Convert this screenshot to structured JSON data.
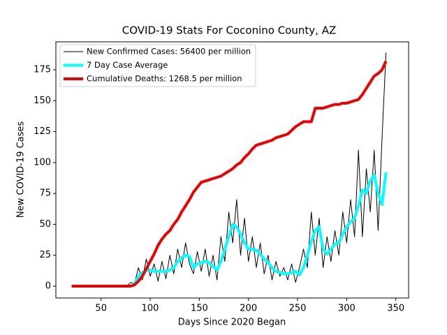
{
  "chart_data": {
    "type": "line",
    "title": "COVID-19 Stats For Coconino County, AZ",
    "x_label": "Days Since 2020 Began",
    "y_label": "New COVID-19 Cases",
    "x": [
      20,
      24,
      28,
      32,
      36,
      40,
      44,
      48,
      52,
      56,
      60,
      64,
      68,
      72,
      76,
      80,
      84,
      88,
      92,
      96,
      100,
      104,
      108,
      112,
      116,
      120,
      124,
      128,
      132,
      136,
      140,
      144,
      148,
      152,
      156,
      160,
      164,
      168,
      172,
      176,
      180,
      184,
      188,
      192,
      196,
      200,
      204,
      208,
      212,
      216,
      220,
      224,
      228,
      232,
      236,
      240,
      244,
      248,
      252,
      256,
      260,
      264,
      268,
      272,
      276,
      280,
      284,
      288,
      292,
      296,
      300,
      304,
      308,
      312,
      316,
      320,
      324,
      328,
      332,
      336,
      340
    ],
    "series": [
      {
        "name": "New Confirmed Cases: 56400 per million",
        "color": "#000000",
        "width": 1,
        "values": [
          0,
          0,
          0,
          0,
          0,
          0,
          0,
          0,
          0,
          0,
          0,
          0,
          0,
          0,
          0,
          3,
          2,
          15,
          5,
          22,
          8,
          18,
          4,
          20,
          6,
          25,
          10,
          30,
          15,
          35,
          18,
          10,
          28,
          12,
          30,
          8,
          25,
          5,
          40,
          20,
          60,
          35,
          70,
          25,
          55,
          20,
          40,
          15,
          35,
          10,
          25,
          5,
          20,
          8,
          15,
          5,
          18,
          3,
          15,
          30,
          15,
          60,
          25,
          55,
          15,
          40,
          20,
          45,
          25,
          60,
          35,
          70,
          40,
          110,
          40,
          95,
          60,
          110,
          45,
          120,
          189
        ]
      },
      {
        "name": "7 Day Case Average",
        "color": "#00ffff",
        "width": 4,
        "values": [
          0,
          0,
          0,
          0,
          0,
          0,
          0,
          0,
          0,
          0,
          0,
          0,
          0,
          0,
          0,
          0,
          2,
          8,
          11,
          13,
          13,
          12,
          12,
          12,
          12,
          13,
          15,
          20,
          23,
          25,
          24,
          15,
          18,
          19,
          20,
          19,
          16,
          13,
          20,
          30,
          40,
          50,
          48,
          42,
          35,
          30,
          30,
          29,
          26,
          22,
          19,
          15,
          12,
          11,
          10,
          10,
          11,
          12,
          9,
          15,
          25,
          36,
          45,
          48,
          30,
          26,
          30,
          34,
          35,
          42,
          48,
          52,
          55,
          65,
          78,
          75,
          85,
          90,
          75,
          66,
          92
        ]
      },
      {
        "name": "Cumulative Deaths: 1268.5 per million",
        "color": "#ee0000",
        "width": 4,
        "values": [
          0,
          0,
          0,
          0,
          0,
          0,
          0,
          0,
          0,
          0,
          0,
          0,
          0,
          0,
          0,
          0,
          1,
          4,
          8,
          14,
          20,
          26,
          33,
          38,
          42,
          45,
          50,
          54,
          60,
          65,
          70,
          76,
          80,
          84,
          85,
          86,
          87,
          88,
          89,
          91,
          93,
          95,
          98,
          100,
          104,
          107,
          111,
          114,
          115,
          116,
          117,
          118,
          120,
          121,
          122,
          123,
          126,
          129,
          131,
          133,
          133,
          133,
          144,
          144,
          144,
          145,
          146,
          147,
          147,
          148,
          148,
          149,
          150,
          151,
          155,
          160,
          165,
          170,
          172,
          175,
          182
        ]
      }
    ],
    "xlim": [
      4,
      363
    ],
    "ylim": [
      -9.6,
      197.6
    ],
    "xticks": [
      50,
      100,
      150,
      200,
      250,
      300,
      350
    ],
    "yticks": [
      0,
      25,
      50,
      75,
      100,
      125,
      150,
      175
    ],
    "legend": "upper left"
  }
}
